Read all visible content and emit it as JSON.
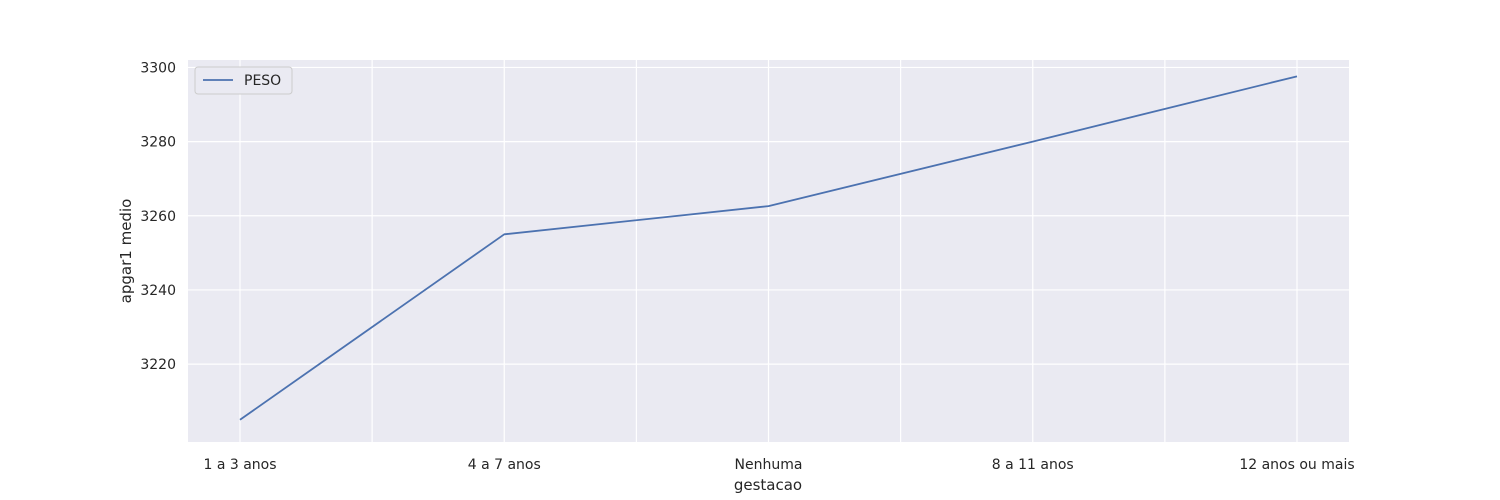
{
  "chart_data": {
    "type": "line",
    "categories": [
      "1 a 3 anos",
      "4 a 7 anos",
      "Nenhuma",
      "8 a 11 anos",
      "12 anos ou mais"
    ],
    "series": [
      {
        "name": "PESO",
        "values": [
          3205,
          3255,
          3262.6,
          3280,
          3297.6
        ],
        "color": "#4c72b0"
      }
    ],
    "xlabel": "gestacao",
    "ylabel": "apgar1 medio",
    "ylim": [
      3199,
      3302
    ],
    "yticks": [
      3220,
      3240,
      3260,
      3280,
      3300
    ],
    "grid": true,
    "legend_position": "top-left",
    "colors": {
      "plot_background": "#eaeaf2",
      "grid": "#ffffff"
    }
  }
}
